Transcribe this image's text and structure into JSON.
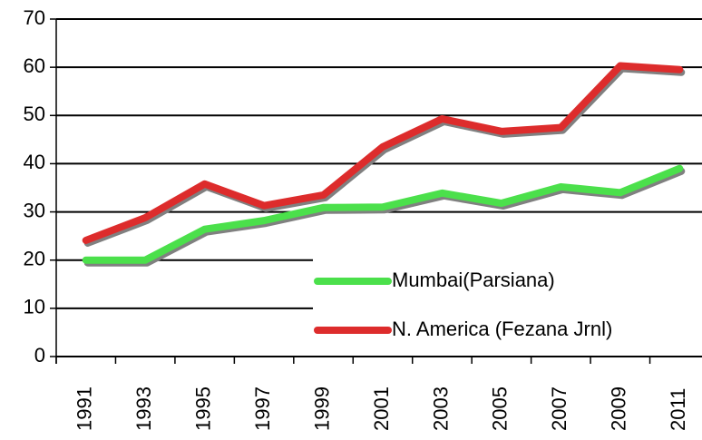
{
  "chart_data": {
    "type": "line",
    "categories": [
      "1991",
      "1993",
      "1995",
      "1997",
      "1999",
      "2001",
      "2003",
      "2005",
      "2007",
      "2009",
      "2011"
    ],
    "series": [
      {
        "name": "Mumbai(Parsiana)",
        "color": "#4be04b",
        "values": [
          20,
          20,
          26.4,
          28.2,
          30.9,
          31,
          33.9,
          31.8,
          35.2,
          34,
          39
        ]
      },
      {
        "name": "N. America (Fezana Jrnl)",
        "color": "#dd2c2c",
        "values": [
          24.1,
          28.8,
          35.8,
          31.3,
          33.5,
          43.5,
          49.3,
          46.7,
          47.5,
          60.3,
          59.5
        ]
      }
    ],
    "ylim": [
      0,
      70
    ],
    "yticks": [
      0,
      10,
      20,
      30,
      40,
      50,
      60,
      70
    ],
    "grid": true,
    "legend": "bottom-right"
  }
}
